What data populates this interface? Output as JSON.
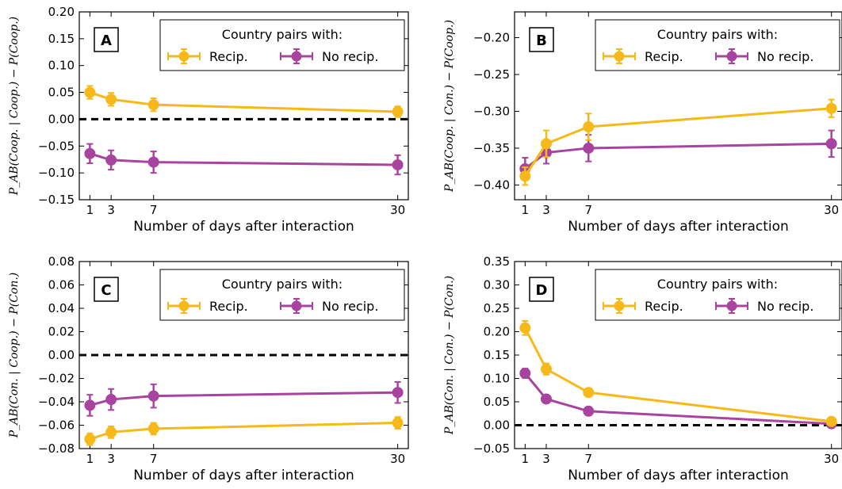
{
  "colors": {
    "recip": "#f7b91a",
    "norecip": "#a8449f",
    "zero_line": "#000000"
  },
  "legend": {
    "title": "Country pairs with:",
    "recip_label": "Recip.",
    "norecip_label": "No recip."
  },
  "xlabel": "Number of days after interaction",
  "chart_data": [
    {
      "type": "line",
      "panel": "A",
      "ylabel": "P_AB(Coop. | Coop.) − P(Coop.)",
      "xlabel": "Number of days after interaction",
      "x": [
        1,
        3,
        7,
        30
      ],
      "x_ticks": [
        1,
        3,
        7,
        30
      ],
      "ylim": [
        -0.15,
        0.2
      ],
      "y_ticks": [
        -0.15,
        -0.1,
        -0.05,
        0.0,
        0.05,
        0.1,
        0.15,
        0.2
      ],
      "y_tick_labels": [
        "−0.15",
        "−0.10",
        "−0.05",
        "0.00",
        "0.05",
        "0.10",
        "0.15",
        "0.20"
      ],
      "reference_line": 0,
      "series": [
        {
          "name": "Recip.",
          "values": [
            0.05,
            0.037,
            0.027,
            0.014
          ],
          "errors": [
            0.012,
            0.012,
            0.012,
            0.01
          ]
        },
        {
          "name": "No recip.",
          "values": [
            -0.064,
            -0.076,
            -0.08,
            -0.085
          ],
          "errors": [
            0.018,
            0.018,
            0.02,
            0.018
          ]
        }
      ],
      "legend_position": "top-right"
    },
    {
      "type": "line",
      "panel": "B",
      "ylabel": "P_AB(Coop. | Con.) − P(Coop.)",
      "xlabel": "Number of days after interaction",
      "x": [
        1,
        3,
        7,
        30
      ],
      "x_ticks": [
        1,
        3,
        7,
        30
      ],
      "ylim": [
        -0.42,
        -0.165
      ],
      "y_ticks": [
        -0.4,
        -0.35,
        -0.3,
        -0.25,
        -0.2
      ],
      "y_tick_labels": [
        "−0.40",
        "−0.35",
        "−0.30",
        "−0.25",
        "−0.20"
      ],
      "series": [
        {
          "name": "Recip.",
          "values": [
            -0.388,
            -0.344,
            -0.321,
            -0.296
          ],
          "errors": [
            0.012,
            0.018,
            0.018,
            0.012
          ]
        },
        {
          "name": "No recip.",
          "values": [
            -0.378,
            -0.356,
            -0.35,
            -0.344
          ],
          "errors": [
            0.015,
            0.015,
            0.018,
            0.018
          ]
        }
      ],
      "legend_position": "top-right"
    },
    {
      "type": "line",
      "panel": "C",
      "ylabel": "P_AB(Con. | Coop.) − P(Con.)",
      "xlabel": "Number of days after interaction",
      "x": [
        1,
        3,
        7,
        30
      ],
      "x_ticks": [
        1,
        3,
        7,
        30
      ],
      "ylim": [
        -0.08,
        0.08
      ],
      "y_ticks": [
        -0.08,
        -0.06,
        -0.04,
        -0.02,
        0.0,
        0.02,
        0.04,
        0.06,
        0.08
      ],
      "y_tick_labels": [
        "−0.08",
        "−0.06",
        "−0.04",
        "−0.02",
        "0.00",
        "0.02",
        "0.04",
        "0.06",
        "0.08"
      ],
      "reference_line": 0,
      "series": [
        {
          "name": "Recip.",
          "values": [
            -0.072,
            -0.066,
            -0.063,
            -0.058
          ],
          "errors": [
            0.005,
            0.005,
            0.005,
            0.005
          ]
        },
        {
          "name": "No recip.",
          "values": [
            -0.043,
            -0.038,
            -0.035,
            -0.032
          ],
          "errors": [
            0.009,
            0.009,
            0.01,
            0.009
          ]
        }
      ],
      "legend_position": "top-right"
    },
    {
      "type": "line",
      "panel": "D",
      "ylabel": "P_AB(Con. | Con.) − P(Con.)",
      "xlabel": "Number of days after interaction",
      "x": [
        1,
        3,
        7,
        30
      ],
      "x_ticks": [
        1,
        3,
        7,
        30
      ],
      "ylim": [
        -0.05,
        0.35
      ],
      "y_ticks": [
        -0.05,
        0.0,
        0.05,
        0.1,
        0.15,
        0.2,
        0.25,
        0.3,
        0.35
      ],
      "y_tick_labels": [
        "−0.05",
        "0.00",
        "0.05",
        "0.10",
        "0.15",
        "0.20",
        "0.25",
        "0.30",
        "0.35"
      ],
      "reference_line": 0,
      "series": [
        {
          "name": "Recip.",
          "values": [
            0.208,
            0.12,
            0.07,
            0.008
          ],
          "errors": [
            0.015,
            0.012,
            0.008,
            0.006
          ]
        },
        {
          "name": "No recip.",
          "values": [
            0.111,
            0.056,
            0.03,
            0.003
          ],
          "errors": [
            0.01,
            0.008,
            0.007,
            0.006
          ]
        }
      ],
      "legend_position": "top-right"
    }
  ]
}
